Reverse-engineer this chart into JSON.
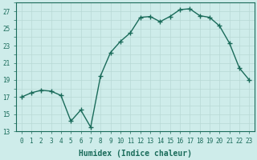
{
  "xlabel": "Humidex (Indice chaleur)",
  "x": [
    0,
    1,
    2,
    3,
    4,
    5,
    6,
    7,
    8,
    9,
    10,
    11,
    12,
    13,
    14,
    15,
    16,
    17,
    18,
    19,
    20,
    21,
    22,
    23
  ],
  "y": [
    17.0,
    17.5,
    17.8,
    17.7,
    17.2,
    14.2,
    15.5,
    13.5,
    19.5,
    22.2,
    23.5,
    24.5,
    26.3,
    26.4,
    25.8,
    26.4,
    27.2,
    27.3,
    26.5,
    26.3,
    25.3,
    23.3,
    20.4,
    19.0
  ],
  "line_color": "#1a6b5a",
  "marker": "+",
  "marker_size": 4,
  "marker_lw": 1.0,
  "line_width": 1.0,
  "bg_color": "#ceecea",
  "grid_color": "#b8d8d5",
  "text_color": "#1a6b5a",
  "ylim": [
    13,
    28
  ],
  "yticks": [
    13,
    15,
    17,
    19,
    21,
    23,
    25,
    27
  ],
  "xticks": [
    0,
    1,
    2,
    3,
    4,
    5,
    6,
    7,
    8,
    9,
    10,
    11,
    12,
    13,
    14,
    15,
    16,
    17,
    18,
    19,
    20,
    21,
    22,
    23
  ],
  "tick_fontsize": 5.5,
  "label_fontsize": 7.0,
  "fig_width": 3.2,
  "fig_height": 2.0,
  "dpi": 100
}
